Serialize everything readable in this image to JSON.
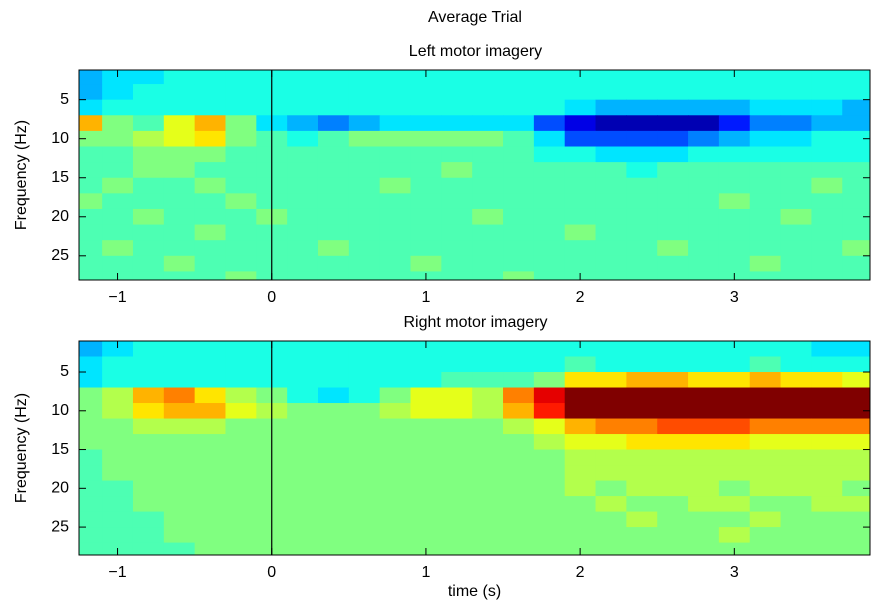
{
  "title": "Average Trial",
  "chart_data": [
    {
      "type": "heatmap",
      "title": "Left motor imagery",
      "ylabel": "Frequency (Hz)",
      "colormap": "jet",
      "yreverse": true,
      "vline": 0,
      "xlim": [
        -1.25,
        3.88
      ],
      "ylim": [
        1.2,
        28.1
      ],
      "xticks": [
        {
          "value": -1,
          "label": "−1"
        },
        0,
        1,
        2,
        3
      ],
      "yticks": [
        5,
        10,
        15,
        20,
        25
      ],
      "xbins": [
        -1.3,
        -1.1,
        -0.9,
        -0.7,
        -0.5,
        -0.3,
        -0.1,
        0.1,
        0.3,
        0.5,
        0.7,
        0.9,
        1.1,
        1.3,
        1.5,
        1.7,
        1.9,
        2.1,
        2.3,
        2.5,
        2.7,
        2.9,
        3.1,
        3.3,
        3.5,
        3.7,
        3.9
      ],
      "ybins": [
        1,
        3,
        5,
        7,
        9,
        11,
        13,
        15,
        17,
        19,
        21,
        23,
        25,
        27,
        29
      ],
      "values": [
        [
          0.3,
          0.35,
          0.35,
          0.4,
          0.4,
          0.4,
          0.4,
          0.4,
          0.4,
          0.4,
          0.4,
          0.4,
          0.4,
          0.4,
          0.4,
          0.4,
          0.4,
          0.4,
          0.4,
          0.4,
          0.4,
          0.4,
          0.4,
          0.4,
          0.4,
          0.4
        ],
        [
          0.3,
          0.35,
          0.4,
          0.4,
          0.4,
          0.4,
          0.4,
          0.4,
          0.4,
          0.4,
          0.4,
          0.4,
          0.4,
          0.4,
          0.4,
          0.4,
          0.4,
          0.4,
          0.4,
          0.4,
          0.4,
          0.4,
          0.4,
          0.4,
          0.4,
          0.4
        ],
        [
          0.35,
          0.4,
          0.4,
          0.4,
          0.4,
          0.4,
          0.4,
          0.4,
          0.4,
          0.4,
          0.4,
          0.4,
          0.4,
          0.4,
          0.4,
          0.4,
          0.35,
          0.3,
          0.3,
          0.3,
          0.3,
          0.3,
          0.35,
          0.35,
          0.35,
          0.3
        ],
        [
          0.7,
          0.5,
          0.45,
          0.6,
          0.7,
          0.5,
          0.35,
          0.3,
          0.25,
          0.3,
          0.35,
          0.35,
          0.35,
          0.35,
          0.35,
          0.2,
          0.1,
          0.05,
          0.05,
          0.05,
          0.05,
          0.15,
          0.25,
          0.25,
          0.3,
          0.3
        ],
        [
          0.5,
          0.5,
          0.55,
          0.6,
          0.65,
          0.5,
          0.45,
          0.4,
          0.45,
          0.5,
          0.5,
          0.5,
          0.5,
          0.5,
          0.45,
          0.35,
          0.2,
          0.2,
          0.2,
          0.2,
          0.25,
          0.3,
          0.35,
          0.35,
          0.4,
          0.4
        ],
        [
          0.45,
          0.45,
          0.5,
          0.5,
          0.5,
          0.45,
          0.45,
          0.45,
          0.45,
          0.45,
          0.45,
          0.45,
          0.45,
          0.45,
          0.45,
          0.4,
          0.4,
          0.35,
          0.35,
          0.35,
          0.4,
          0.4,
          0.4,
          0.4,
          0.4,
          0.4
        ],
        [
          0.45,
          0.45,
          0.5,
          0.5,
          0.45,
          0.45,
          0.45,
          0.45,
          0.45,
          0.45,
          0.45,
          0.45,
          0.5,
          0.45,
          0.45,
          0.45,
          0.45,
          0.45,
          0.4,
          0.45,
          0.45,
          0.45,
          0.45,
          0.45,
          0.45,
          0.45
        ],
        [
          0.45,
          0.5,
          0.45,
          0.45,
          0.5,
          0.45,
          0.45,
          0.45,
          0.45,
          0.45,
          0.5,
          0.45,
          0.45,
          0.45,
          0.45,
          0.45,
          0.45,
          0.45,
          0.45,
          0.45,
          0.45,
          0.45,
          0.45,
          0.45,
          0.5,
          0.45
        ],
        [
          0.5,
          0.45,
          0.45,
          0.45,
          0.45,
          0.5,
          0.45,
          0.45,
          0.45,
          0.45,
          0.45,
          0.45,
          0.45,
          0.45,
          0.45,
          0.45,
          0.45,
          0.45,
          0.45,
          0.45,
          0.45,
          0.5,
          0.45,
          0.45,
          0.45,
          0.45
        ],
        [
          0.45,
          0.45,
          0.5,
          0.45,
          0.45,
          0.45,
          0.5,
          0.45,
          0.45,
          0.45,
          0.45,
          0.45,
          0.45,
          0.5,
          0.45,
          0.45,
          0.45,
          0.45,
          0.45,
          0.45,
          0.45,
          0.45,
          0.45,
          0.5,
          0.45,
          0.45
        ],
        [
          0.45,
          0.45,
          0.45,
          0.45,
          0.5,
          0.45,
          0.45,
          0.45,
          0.45,
          0.45,
          0.45,
          0.45,
          0.45,
          0.45,
          0.45,
          0.45,
          0.5,
          0.45,
          0.45,
          0.45,
          0.45,
          0.45,
          0.45,
          0.45,
          0.45,
          0.45
        ],
        [
          0.45,
          0.5,
          0.45,
          0.45,
          0.45,
          0.45,
          0.45,
          0.45,
          0.5,
          0.45,
          0.45,
          0.45,
          0.45,
          0.45,
          0.45,
          0.45,
          0.45,
          0.45,
          0.45,
          0.5,
          0.45,
          0.45,
          0.45,
          0.45,
          0.45,
          0.5
        ],
        [
          0.45,
          0.45,
          0.45,
          0.5,
          0.45,
          0.45,
          0.45,
          0.45,
          0.45,
          0.45,
          0.45,
          0.5,
          0.45,
          0.45,
          0.45,
          0.45,
          0.45,
          0.45,
          0.45,
          0.45,
          0.45,
          0.45,
          0.5,
          0.45,
          0.45,
          0.45
        ],
        [
          0.45,
          0.45,
          0.45,
          0.45,
          0.45,
          0.5,
          0.45,
          0.45,
          0.45,
          0.45,
          0.45,
          0.45,
          0.45,
          0.45,
          0.5,
          0.45,
          0.45,
          0.45,
          0.45,
          0.45,
          0.45,
          0.45,
          0.45,
          0.45,
          0.45,
          0.45
        ]
      ]
    },
    {
      "type": "heatmap",
      "title": "Right motor imagery",
      "ylabel": "Frequency (Hz)",
      "xlabel": "time (s)",
      "colormap": "jet",
      "yreverse": true,
      "vline": 0,
      "xlim": [
        -1.25,
        3.88
      ],
      "ylim": [
        1,
        28.6
      ],
      "xticks": [
        {
          "value": -1,
          "label": "−1"
        },
        0,
        1,
        2,
        3
      ],
      "yticks": [
        5,
        10,
        15,
        20,
        25
      ],
      "xbins": [
        -1.3,
        -1.1,
        -0.9,
        -0.7,
        -0.5,
        -0.3,
        -0.1,
        0.1,
        0.3,
        0.5,
        0.7,
        0.9,
        1.1,
        1.3,
        1.5,
        1.7,
        1.9,
        2.1,
        2.3,
        2.5,
        2.7,
        2.9,
        3.1,
        3.3,
        3.5,
        3.7,
        3.9
      ],
      "ybins": [
        1,
        3,
        5,
        7,
        9,
        11,
        13,
        15,
        17,
        19,
        21,
        23,
        25,
        27,
        29
      ],
      "values": [
        [
          0.3,
          0.35,
          0.4,
          0.4,
          0.4,
          0.4,
          0.4,
          0.4,
          0.4,
          0.4,
          0.4,
          0.4,
          0.4,
          0.4,
          0.4,
          0.4,
          0.4,
          0.4,
          0.4,
          0.4,
          0.4,
          0.4,
          0.4,
          0.4,
          0.35,
          0.35
        ],
        [
          0.35,
          0.4,
          0.4,
          0.4,
          0.4,
          0.4,
          0.4,
          0.4,
          0.4,
          0.4,
          0.4,
          0.4,
          0.4,
          0.4,
          0.4,
          0.4,
          0.45,
          0.4,
          0.4,
          0.4,
          0.4,
          0.4,
          0.45,
          0.4,
          0.4,
          0.4
        ],
        [
          0.35,
          0.4,
          0.4,
          0.4,
          0.4,
          0.4,
          0.4,
          0.4,
          0.4,
          0.4,
          0.4,
          0.4,
          0.45,
          0.45,
          0.45,
          0.5,
          0.65,
          0.65,
          0.7,
          0.7,
          0.65,
          0.65,
          0.7,
          0.65,
          0.65,
          0.6
        ],
        [
          0.5,
          0.55,
          0.7,
          0.75,
          0.65,
          0.55,
          0.5,
          0.4,
          0.35,
          0.4,
          0.5,
          0.6,
          0.6,
          0.55,
          0.75,
          0.9,
          1,
          1,
          1,
          1,
          1,
          1,
          1,
          1,
          1,
          1
        ],
        [
          0.5,
          0.55,
          0.65,
          0.7,
          0.7,
          0.6,
          0.55,
          0.5,
          0.5,
          0.5,
          0.55,
          0.6,
          0.6,
          0.55,
          0.7,
          0.85,
          1,
          1,
          1,
          1,
          1,
          1,
          1,
          1,
          1,
          1
        ],
        [
          0.5,
          0.5,
          0.55,
          0.55,
          0.55,
          0.5,
          0.5,
          0.5,
          0.5,
          0.5,
          0.5,
          0.5,
          0.5,
          0.5,
          0.55,
          0.6,
          0.7,
          0.75,
          0.75,
          0.8,
          0.8,
          0.8,
          0.75,
          0.75,
          0.75,
          0.75
        ],
        [
          0.5,
          0.5,
          0.5,
          0.5,
          0.5,
          0.5,
          0.5,
          0.5,
          0.5,
          0.5,
          0.5,
          0.5,
          0.5,
          0.5,
          0.5,
          0.55,
          0.6,
          0.6,
          0.65,
          0.65,
          0.65,
          0.65,
          0.6,
          0.6,
          0.6,
          0.6
        ],
        [
          0.45,
          0.5,
          0.5,
          0.5,
          0.5,
          0.5,
          0.5,
          0.5,
          0.5,
          0.5,
          0.5,
          0.5,
          0.5,
          0.5,
          0.5,
          0.5,
          0.55,
          0.55,
          0.55,
          0.55,
          0.55,
          0.55,
          0.55,
          0.55,
          0.55,
          0.55
        ],
        [
          0.45,
          0.5,
          0.5,
          0.5,
          0.5,
          0.5,
          0.5,
          0.5,
          0.5,
          0.5,
          0.5,
          0.5,
          0.5,
          0.5,
          0.5,
          0.5,
          0.55,
          0.55,
          0.55,
          0.55,
          0.55,
          0.55,
          0.55,
          0.55,
          0.55,
          0.55
        ],
        [
          0.45,
          0.45,
          0.5,
          0.5,
          0.5,
          0.5,
          0.5,
          0.5,
          0.5,
          0.5,
          0.5,
          0.5,
          0.5,
          0.5,
          0.5,
          0.5,
          0.55,
          0.5,
          0.55,
          0.55,
          0.55,
          0.5,
          0.55,
          0.55,
          0.55,
          0.5
        ],
        [
          0.45,
          0.45,
          0.5,
          0.5,
          0.5,
          0.5,
          0.5,
          0.5,
          0.5,
          0.5,
          0.5,
          0.5,
          0.5,
          0.5,
          0.5,
          0.5,
          0.5,
          0.55,
          0.5,
          0.5,
          0.55,
          0.55,
          0.5,
          0.5,
          0.55,
          0.55
        ],
        [
          0.45,
          0.45,
          0.45,
          0.5,
          0.5,
          0.5,
          0.5,
          0.5,
          0.5,
          0.5,
          0.5,
          0.5,
          0.5,
          0.5,
          0.5,
          0.5,
          0.5,
          0.5,
          0.55,
          0.5,
          0.5,
          0.5,
          0.55,
          0.5,
          0.5,
          0.5
        ],
        [
          0.45,
          0.45,
          0.45,
          0.5,
          0.5,
          0.5,
          0.5,
          0.5,
          0.5,
          0.5,
          0.5,
          0.5,
          0.5,
          0.5,
          0.5,
          0.5,
          0.5,
          0.5,
          0.5,
          0.5,
          0.5,
          0.55,
          0.5,
          0.5,
          0.5,
          0.5
        ],
        [
          0.45,
          0.45,
          0.45,
          0.45,
          0.5,
          0.5,
          0.5,
          0.5,
          0.5,
          0.5,
          0.5,
          0.5,
          0.5,
          0.5,
          0.5,
          0.5,
          0.5,
          0.5,
          0.5,
          0.5,
          0.5,
          0.5,
          0.5,
          0.5,
          0.5,
          0.5
        ]
      ]
    }
  ]
}
